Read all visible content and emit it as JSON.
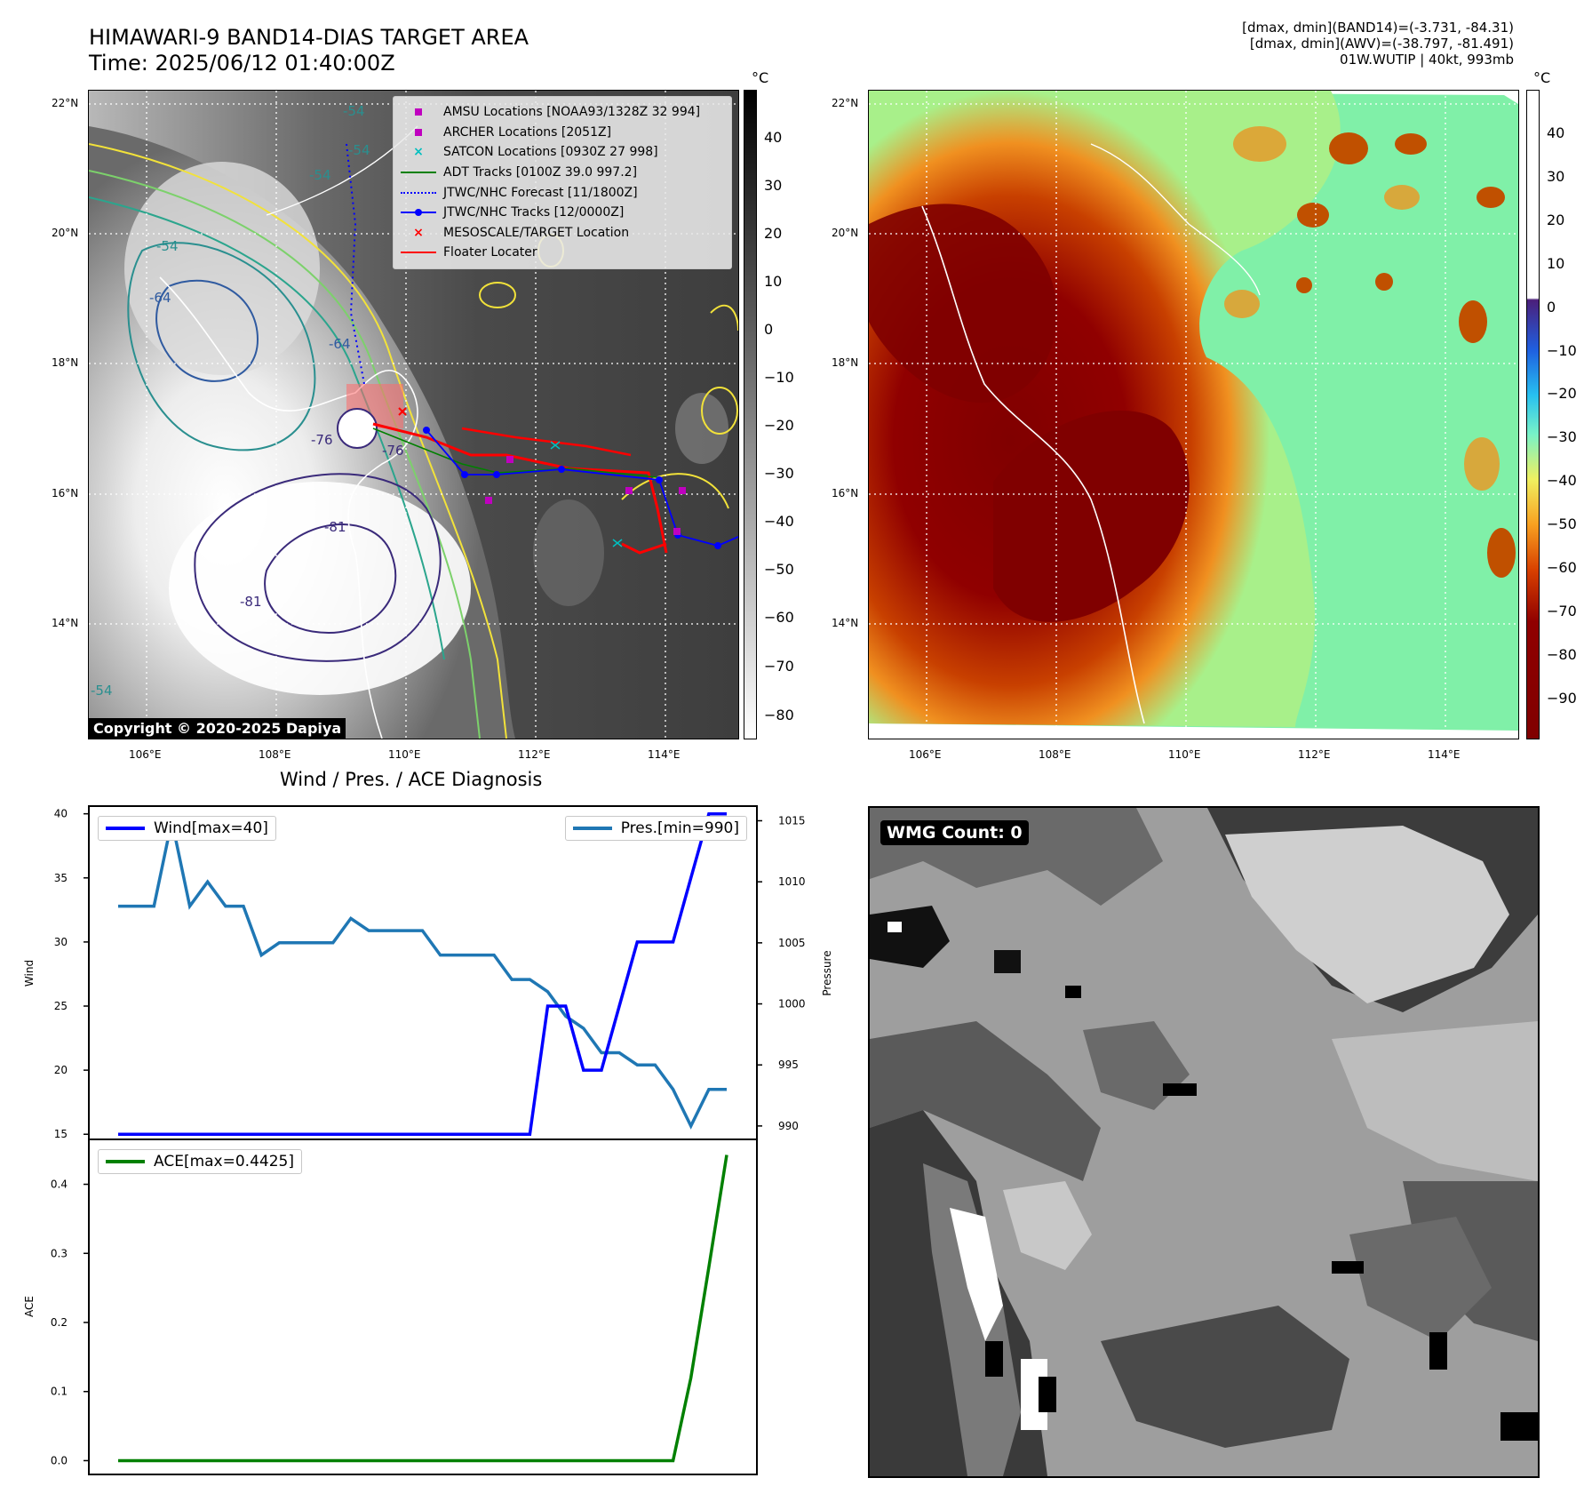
{
  "header": {
    "title": "HIMAWARI-9 BAND14-DIAS TARGET AREA",
    "time": "Time: 2025/06/12 01:40:00Z",
    "info_lines": [
      "[dmax, dmin](BAND14)=(-3.731, -84.31)",
      "[dmax, dmin](AWV)=(-38.797, -81.491)",
      "01W.WUTIP | 40kt, 993mb"
    ]
  },
  "map": {
    "lat_labels": [
      "22°N",
      "20°N",
      "18°N",
      "16°N",
      "14°N"
    ],
    "lon_labels": [
      "106°E",
      "108°E",
      "110°E",
      "112°E",
      "114°E"
    ],
    "contour_labels": [
      "-54",
      "-54",
      "-54",
      "-54",
      "-64",
      "-64",
      "-76",
      "-81",
      "-81",
      "-76",
      "-54"
    ],
    "copyright": "Copyright © 2020-2025 Dapiya"
  },
  "legend": {
    "items": [
      {
        "label": "AMSU Locations [NOAA93/1328Z 32 994]",
        "kind": "square",
        "color": "#bf00bf"
      },
      {
        "label": "ARCHER Locations [2051Z]",
        "kind": "square",
        "color": "#bf00bf"
      },
      {
        "label": "SATCON Locations [0930Z 27 998]",
        "kind": "x",
        "color": "#00bfbf"
      },
      {
        "label": "ADT Tracks [0100Z 39.0 997.2]",
        "kind": "line",
        "color": "#008000"
      },
      {
        "label": "JTWC/NHC Forecast [11/1800Z]",
        "kind": "dotted",
        "color": "#0000ff"
      },
      {
        "label": "JTWC/NHC Tracks [12/0000Z]",
        "kind": "dotline",
        "color": "#0000ff"
      },
      {
        "label": "MESOSCALE/TARGET Location",
        "kind": "x",
        "color": "#ff0000"
      },
      {
        "label": "Floater Locater",
        "kind": "line",
        "color": "#ff0000"
      }
    ]
  },
  "colorbar_left": {
    "unit": "°C",
    "ticks": [
      "40",
      "30",
      "20",
      "10",
      "0",
      "−10",
      "−20",
      "−30",
      "−40",
      "−50",
      "−60",
      "−70",
      "−80"
    ]
  },
  "colorbar_right": {
    "unit": "°C",
    "ticks": [
      "40",
      "30",
      "20",
      "10",
      "0",
      "−10",
      "−20",
      "−30",
      "−40",
      "−50",
      "−60",
      "−70",
      "−80",
      "−90"
    ]
  },
  "wmg": {
    "label": "WMG Count: 0"
  },
  "chart_data": [
    {
      "type": "line",
      "title": "Wind / Pres. / ACE Diagnosis",
      "ylabel": "Wind",
      "ylabel_right": "Pressure",
      "ylim": [
        14.6,
        40.6
      ],
      "ylim_right": [
        988.9,
        1016.2
      ],
      "yticks": [
        15,
        20,
        25,
        30,
        35,
        40
      ],
      "yticks_right": [
        990,
        995,
        1000,
        1005,
        1010,
        1015
      ],
      "x": [
        0,
        1,
        2,
        3,
        4,
        5,
        6,
        7,
        8,
        9,
        10,
        11,
        12,
        13,
        14,
        15,
        16,
        17,
        18,
        19,
        20,
        21,
        22,
        23,
        24,
        25,
        26,
        27,
        28,
        29,
        30,
        31,
        32,
        33,
        34
      ],
      "series": [
        {
          "name": "Wind[max=40]",
          "axis": "left",
          "color": "#0000ff",
          "values": [
            15,
            15,
            15,
            15,
            15,
            15,
            15,
            15,
            15,
            15,
            15,
            15,
            15,
            15,
            15,
            15,
            15,
            15,
            15,
            15,
            15,
            15,
            15,
            15,
            25,
            25,
            20,
            20,
            25,
            30,
            30,
            30,
            35,
            40,
            40
          ]
        },
        {
          "name": "Pres.[min=990]",
          "axis": "right",
          "color": "#1f77b4",
          "values": [
            1008,
            1008,
            1008,
            1015,
            1008,
            1010,
            1008,
            1008,
            1004,
            1005,
            1005,
            1005,
            1005,
            1007,
            1006,
            1006,
            1006,
            1006,
            1004,
            1004,
            1004,
            1004,
            1002,
            1002,
            1001,
            999,
            998,
            996,
            996,
            995,
            995,
            993,
            990,
            993,
            993
          ]
        }
      ]
    },
    {
      "type": "line",
      "ylabel": "ACE",
      "ylim": [
        -0.02,
        0.465
      ],
      "yticks": [
        0.0,
        0.1,
        0.2,
        0.3,
        0.4
      ],
      "x": [
        0,
        1,
        2,
        3,
        4,
        5,
        6,
        7,
        8,
        9,
        10,
        11,
        12,
        13,
        14,
        15,
        16,
        17,
        18,
        19,
        20,
        21,
        22,
        23,
        24,
        25,
        26,
        27,
        28,
        29,
        30,
        31,
        32,
        33,
        34
      ],
      "series": [
        {
          "name": "ACE[max=0.4425]",
          "axis": "left",
          "color": "#008000",
          "values": [
            0,
            0,
            0,
            0,
            0,
            0,
            0,
            0,
            0,
            0,
            0,
            0,
            0,
            0,
            0,
            0,
            0,
            0,
            0,
            0,
            0,
            0,
            0,
            0,
            0,
            0,
            0,
            0,
            0,
            0,
            0,
            0,
            0.12,
            0.28,
            0.4425
          ]
        }
      ]
    }
  ]
}
